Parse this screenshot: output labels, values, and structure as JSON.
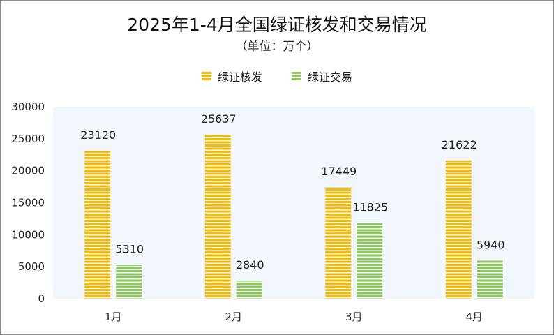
{
  "chart_data": {
    "type": "bar",
    "title": "2025年1-4月全国绿证核发和交易情况",
    "subtitle": "（单位：万个）",
    "categories": [
      "1月",
      "2月",
      "3月",
      "4月"
    ],
    "series": [
      {
        "name": "绿证核发",
        "values": [
          23120,
          25637,
          17449,
          21622
        ],
        "color": "#f5bb00"
      },
      {
        "name": "绿证交易",
        "values": [
          5310,
          2840,
          11825,
          5940
        ],
        "color": "#8fc65a"
      }
    ],
    "ylim": [
      0,
      30000
    ],
    "yticks": [
      0,
      5000,
      10000,
      15000,
      20000,
      25000,
      30000
    ],
    "legend_position": "top-center",
    "grid": false,
    "plot_background": "#f1f7fd"
  }
}
